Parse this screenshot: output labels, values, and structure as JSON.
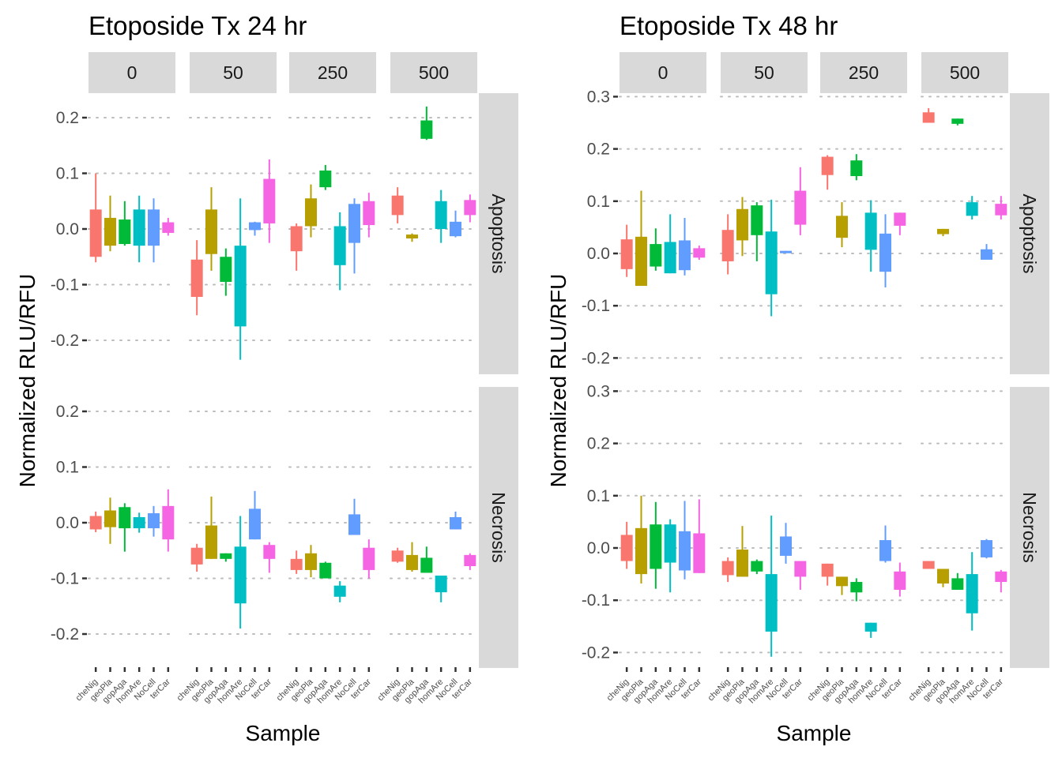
{
  "chart_data": [
    {
      "type": "boxplot",
      "title": "Etoposide Tx 24 hr",
      "xlabel": "Sample",
      "ylabel": "Normalized RLU/RFU",
      "ylim": [
        -0.25,
        0.23
      ],
      "yticks": [
        -0.2,
        -0.1,
        0.0,
        0.1,
        0.2
      ],
      "yticklabels": [
        "-0.2",
        "-0.1",
        "0.0",
        "0.1",
        "0.2"
      ],
      "grid": true,
      "col_facets": [
        "0",
        "50",
        "250",
        "500"
      ],
      "row_facets": [
        "Apoptosis",
        "Necrosis"
      ],
      "samples": [
        "cheNig",
        "geoPla",
        "gopAga",
        "homAre",
        "NoCell",
        "terCar"
      ],
      "colors": [
        "#F8766D",
        "#B79F00",
        "#00BA38",
        "#00BFC4",
        "#619CFF",
        "#F564E3"
      ],
      "data": {
        "Apoptosis": {
          "0": [
            [
              -0.06,
              -0.05,
              0.035,
              0.1
            ],
            [
              -0.04,
              -0.03,
              0.02,
              0.06
            ],
            [
              -0.03,
              -0.027,
              0.017,
              0.05
            ],
            [
              -0.06,
              -0.03,
              0.035,
              0.06
            ],
            [
              -0.06,
              -0.03,
              0.035,
              0.055
            ],
            [
              -0.012,
              -0.007,
              0.012,
              0.02
            ]
          ],
          "50": [
            [
              -0.155,
              -0.122,
              -0.055,
              -0.02
            ],
            [
              -0.075,
              -0.045,
              0.035,
              0.075
            ],
            [
              -0.12,
              -0.095,
              -0.05,
              -0.035
            ],
            [
              -0.235,
              -0.175,
              -0.03,
              0.055
            ],
            [
              -0.012,
              -0.002,
              0.012,
              0.013
            ],
            [
              -0.025,
              0.01,
              0.09,
              0.125
            ]
          ],
          "250": [
            [
              -0.075,
              -0.04,
              0.005,
              0.01
            ],
            [
              -0.015,
              0.005,
              0.055,
              0.08
            ],
            [
              0.07,
              0.075,
              0.105,
              0.115
            ],
            [
              -0.11,
              -0.065,
              0.005,
              0.03
            ],
            [
              -0.08,
              -0.025,
              0.045,
              0.055
            ],
            [
              -0.015,
              0.007,
              0.05,
              0.065
            ]
          ],
          "500": [
            [
              0.01,
              0.025,
              0.06,
              0.075
            ],
            [
              -0.023,
              -0.017,
              -0.01,
              -0.008
            ],
            [
              0.16,
              0.162,
              0.195,
              0.22
            ],
            [
              -0.025,
              0.0,
              0.05,
              0.07
            ],
            [
              -0.015,
              -0.013,
              0.013,
              0.033
            ],
            [
              0.012,
              0.025,
              0.052,
              0.062
            ]
          ]
        },
        "Necrosis": {
          "0": [
            [
              -0.017,
              -0.012,
              0.012,
              0.02
            ],
            [
              -0.038,
              -0.008,
              0.022,
              0.045
            ],
            [
              -0.052,
              -0.01,
              0.028,
              0.035
            ],
            [
              -0.018,
              -0.01,
              0.01,
              0.018
            ],
            [
              -0.025,
              -0.01,
              0.017,
              0.03
            ],
            [
              -0.052,
              -0.03,
              0.03,
              0.06
            ]
          ],
          "50": [
            [
              -0.088,
              -0.075,
              -0.045,
              -0.038
            ],
            [
              -0.065,
              -0.065,
              -0.005,
              0.047
            ],
            [
              -0.07,
              -0.065,
              -0.055,
              -0.055
            ],
            [
              -0.19,
              -0.145,
              -0.043,
              0.012
            ],
            [
              -0.03,
              -0.03,
              0.025,
              0.057
            ],
            [
              -0.09,
              -0.065,
              -0.04,
              -0.035
            ]
          ],
          "250": [
            [
              -0.092,
              -0.085,
              -0.065,
              -0.05
            ],
            [
              -0.098,
              -0.085,
              -0.055,
              -0.04
            ],
            [
              -0.1,
              -0.1,
              -0.072,
              -0.07
            ],
            [
              -0.143,
              -0.133,
              -0.113,
              -0.105
            ],
            [
              -0.022,
              -0.022,
              0.015,
              0.043
            ],
            [
              -0.1,
              -0.085,
              -0.045,
              -0.03
            ]
          ],
          "500": [
            [
              -0.072,
              -0.07,
              -0.05,
              -0.045
            ],
            [
              -0.088,
              -0.085,
              -0.058,
              -0.035
            ],
            [
              -0.085,
              -0.09,
              -0.063,
              -0.043
            ],
            [
              -0.143,
              -0.125,
              -0.095,
              -0.095
            ],
            [
              -0.012,
              -0.012,
              0.01,
              0.02
            ],
            [
              -0.085,
              -0.078,
              -0.058,
              -0.055
            ]
          ]
        }
      }
    },
    {
      "type": "boxplot",
      "title": "Etoposide Tx 48 hr",
      "xlabel": "Sample",
      "ylabel": "Normalized RLU/RFU",
      "ylim": [
        -0.23,
        0.31
      ],
      "yticks": [
        -0.2,
        -0.1,
        0.0,
        0.1,
        0.2,
        0.3
      ],
      "yticklabels": [
        "-0.2",
        "-0.1",
        "0.0",
        "0.1",
        "0.2",
        "0.3"
      ],
      "grid": true,
      "col_facets": [
        "0",
        "50",
        "250",
        "500"
      ],
      "row_facets": [
        "Apoptosis",
        "Necrosis"
      ],
      "samples": [
        "cheNig",
        "geoPla",
        "gopAga",
        "homAre",
        "NoCell",
        "terCar"
      ],
      "colors": [
        "#F8766D",
        "#B79F00",
        "#00BA38",
        "#00BFC4",
        "#619CFF",
        "#F564E3"
      ],
      "data": {
        "Apoptosis": {
          "0": [
            [
              -0.045,
              -0.03,
              0.027,
              0.055
            ],
            [
              -0.062,
              -0.062,
              0.032,
              0.12
            ],
            [
              -0.033,
              -0.025,
              0.018,
              0.048
            ],
            [
              -0.038,
              -0.038,
              0.022,
              0.075
            ],
            [
              -0.042,
              -0.032,
              0.025,
              0.068
            ],
            [
              -0.012,
              -0.008,
              0.01,
              0.015
            ]
          ],
          "50": [
            [
              -0.04,
              -0.015,
              0.045,
              0.075
            ],
            [
              -0.005,
              0.025,
              0.085,
              0.108
            ],
            [
              -0.015,
              0.035,
              0.092,
              0.098
            ],
            [
              -0.12,
              -0.078,
              0.042,
              0.103
            ],
            [
              0.002,
              0.002,
              0.005,
              0.005
            ],
            [
              0.035,
              0.055,
              0.12,
              0.165
            ]
          ],
          "250": [
            [
              0.122,
              0.15,
              0.185,
              0.188
            ],
            [
              0.012,
              0.03,
              0.072,
              0.098
            ],
            [
              0.14,
              0.148,
              0.178,
              0.19
            ],
            [
              -0.035,
              0.007,
              0.078,
              0.102
            ],
            [
              -0.065,
              -0.035,
              0.038,
              0.075
            ],
            [
              0.035,
              0.053,
              0.078,
              0.078
            ]
          ],
          "500": [
            [
              0.25,
              0.25,
              0.27,
              0.278
            ],
            [
              0.033,
              0.037,
              0.047,
              0.047
            ],
            [
              0.245,
              0.248,
              0.258,
              0.258
            ],
            [
              0.065,
              0.072,
              0.098,
              0.11
            ],
            [
              -0.01,
              -0.012,
              0.008,
              0.018
            ],
            [
              0.065,
              0.073,
              0.095,
              0.11
            ]
          ]
        },
        "Necrosis": {
          "0": [
            [
              -0.04,
              -0.025,
              0.025,
              0.05
            ],
            [
              -0.068,
              -0.05,
              0.038,
              0.1
            ],
            [
              -0.078,
              -0.04,
              0.045,
              0.088
            ],
            [
              -0.085,
              -0.028,
              0.045,
              0.055
            ],
            [
              -0.06,
              -0.043,
              0.032,
              0.09
            ],
            [
              -0.048,
              -0.048,
              0.028,
              0.093
            ]
          ],
          "50": [
            [
              -0.065,
              -0.052,
              -0.025,
              -0.018
            ],
            [
              -0.055,
              -0.055,
              -0.003,
              0.042
            ],
            [
              -0.05,
              -0.045,
              -0.025,
              -0.022
            ],
            [
              -0.208,
              -0.16,
              -0.05,
              0.062
            ],
            [
              -0.03,
              -0.015,
              0.022,
              0.048
            ],
            [
              -0.08,
              -0.055,
              -0.025,
              -0.025
            ]
          ],
          "250": [
            [
              -0.072,
              -0.055,
              -0.03,
              -0.03
            ],
            [
              -0.09,
              -0.073,
              -0.055,
              -0.055
            ],
            [
              -0.102,
              -0.085,
              -0.065,
              -0.058
            ],
            [
              -0.172,
              -0.16,
              -0.143,
              -0.143
            ],
            [
              -0.028,
              -0.025,
              0.015,
              0.043
            ],
            [
              -0.093,
              -0.08,
              -0.045,
              -0.028
            ]
          ],
          "500": [
            [
              -0.04,
              -0.04,
              -0.025,
              -0.025
            ],
            [
              -0.075,
              -0.068,
              -0.04,
              -0.04
            ],
            [
              -0.08,
              -0.08,
              -0.058,
              -0.048
            ],
            [
              -0.158,
              -0.125,
              -0.05,
              -0.008
            ],
            [
              -0.02,
              -0.018,
              0.015,
              0.017
            ],
            [
              -0.085,
              -0.065,
              -0.045,
              -0.042
            ]
          ]
        }
      }
    }
  ]
}
